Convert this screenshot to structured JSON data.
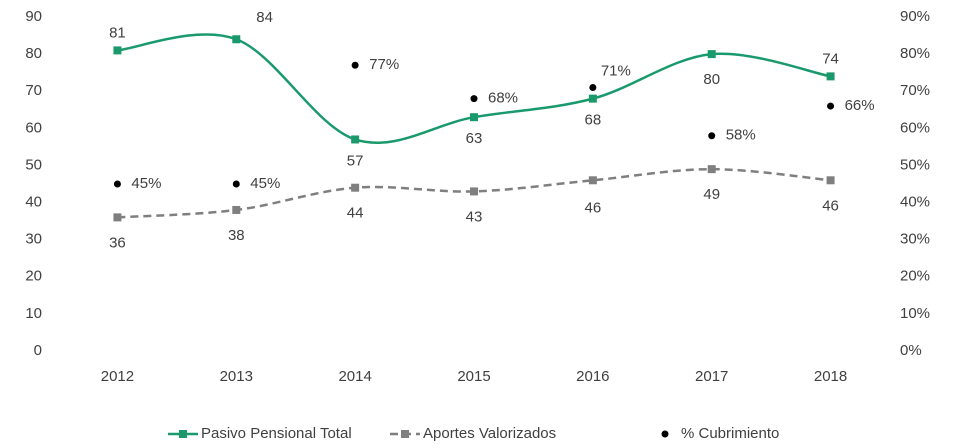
{
  "chart_data": {
    "type": "line",
    "categories": [
      "2012",
      "2013",
      "2014",
      "2015",
      "2016",
      "2017",
      "2018"
    ],
    "series": [
      {
        "name": "Pasivo Pensional Total",
        "color": "#1a9a6c",
        "dash": false,
        "marker": "square",
        "values": [
          81,
          84,
          57,
          63,
          68,
          80,
          74
        ]
      },
      {
        "name": "Aportes  Valorizados",
        "color": "#7f7f7f",
        "dash": true,
        "marker": "square",
        "values": [
          36,
          38,
          44,
          43,
          46,
          49,
          46
        ]
      },
      {
        "name": "% Cubrimiento",
        "color": "#000000",
        "axis": "y2",
        "marker": "dot",
        "values": [
          45,
          45,
          77,
          68,
          71,
          58,
          66
        ],
        "value_labels": [
          "45%",
          "45%",
          "77%",
          "68%",
          "71%",
          "58%",
          "66%"
        ]
      }
    ],
    "ylim": [
      0,
      90
    ],
    "yticks": [
      0,
      10,
      20,
      30,
      40,
      50,
      60,
      70,
      80,
      90
    ],
    "y2lim": [
      0,
      90
    ],
    "y2ticks": [
      {
        "value": 0,
        "label": "0%"
      },
      {
        "value": 10,
        "label": "10%"
      },
      {
        "value": 20,
        "label": "20%"
      },
      {
        "value": 30,
        "label": "30%"
      },
      {
        "value": 40,
        "label": "40%"
      },
      {
        "value": 50,
        "label": "50%"
      },
      {
        "value": 60,
        "label": "60%"
      },
      {
        "value": 70,
        "label": "70%"
      },
      {
        "value": 80,
        "label": "80%"
      },
      {
        "value": 90,
        "label": "90%"
      }
    ],
    "legend": "bottom"
  }
}
